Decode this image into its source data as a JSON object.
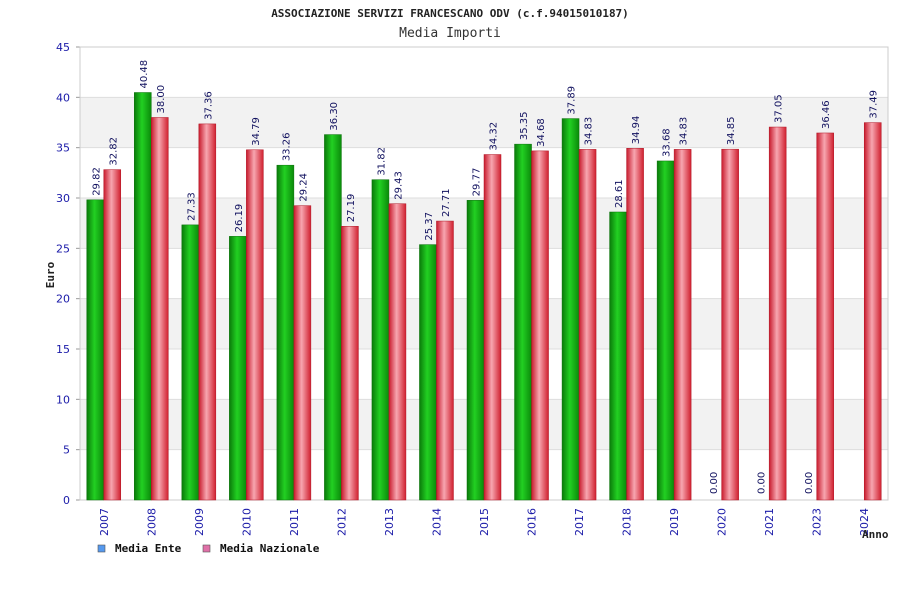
{
  "chart_data": {
    "type": "bar",
    "title": "ASSOCIAZIONE SERVIZI FRANCESCANO ODV (c.f.94015010187)",
    "subtitle": "Media Importi",
    "ylabel": "Euro",
    "xlabel": "Anno",
    "ylim": [
      0,
      45
    ],
    "yticks": [
      0,
      5,
      10,
      15,
      20,
      25,
      30,
      35,
      40,
      45
    ],
    "grid": true,
    "legend_position": "bottom-left",
    "categories": [
      "2007",
      "2008",
      "2009",
      "2010",
      "2011",
      "2012",
      "2013",
      "2014",
      "2015",
      "2016",
      "2017",
      "2018",
      "2019",
      "2020",
      "2021",
      "2023",
      "2024"
    ],
    "series": [
      {
        "name": "Media Ente",
        "color": "#14b814",
        "legend_color": "#5599ee",
        "values": [
          29.82,
          40.48,
          27.33,
          26.19,
          33.26,
          36.3,
          31.82,
          25.37,
          29.77,
          35.35,
          37.89,
          28.61,
          33.68,
          0.0,
          0.0,
          0.0,
          null
        ],
        "labels": [
          "29.82",
          "40.48",
          "27.33",
          "26.19",
          "33.26",
          "36.30",
          "31.82",
          "25.37",
          "29.77",
          "35.35",
          "37.89",
          "28.61",
          "33.68",
          "0.00",
          "0.00",
          "0.00",
          ""
        ]
      },
      {
        "name": "Media Nazionale",
        "color": "#e8384a",
        "legend_color": "#e070a8",
        "values": [
          32.82,
          38.0,
          37.36,
          34.79,
          29.24,
          27.19,
          29.43,
          27.71,
          34.32,
          34.68,
          34.83,
          34.94,
          34.83,
          34.85,
          37.05,
          36.46,
          37.49
        ],
        "labels": [
          "32.82",
          "38.00",
          "37.36",
          "34.79",
          "29.24",
          "27.19",
          "29.43",
          "27.71",
          "34.32",
          "34.68",
          "34.83",
          "34.94",
          "34.83",
          "34.85",
          "37.05",
          "36.46",
          "37.49"
        ]
      }
    ]
  }
}
